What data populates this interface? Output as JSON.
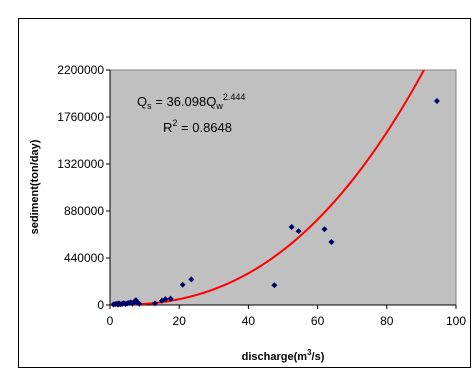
{
  "chart_data": {
    "type": "scatter",
    "title": "",
    "xlabel": "discharge(m3/s)",
    "xlabel_parts": {
      "main": "discharge(m",
      "sup": "3",
      "tail": "/s)"
    },
    "ylabel": "sediment(ton/day)",
    "xlim": [
      0,
      100
    ],
    "ylim": [
      0,
      2200000
    ],
    "x_ticks": [
      "0",
      "20",
      "40",
      "60",
      "80",
      "100"
    ],
    "y_ticks": [
      "0",
      "440000",
      "880000",
      "1320000",
      "1760000",
      "2200000"
    ],
    "grid": false,
    "plot_background": "#c0c0c0",
    "series": [
      {
        "marker_color": "#000066",
        "points": [
          [
            1,
            5000
          ],
          [
            1.5,
            8000
          ],
          [
            2,
            12000
          ],
          [
            2.3,
            3000
          ],
          [
            2.6,
            15000
          ],
          [
            3,
            6000
          ],
          [
            3.5,
            10000
          ],
          [
            4,
            18000
          ],
          [
            4.5,
            8000
          ],
          [
            5,
            15000
          ],
          [
            5.5,
            20000
          ],
          [
            6,
            25000
          ],
          [
            6.5,
            12000
          ],
          [
            7,
            30000
          ],
          [
            7.5,
            45000
          ],
          [
            8,
            20000
          ],
          [
            8.5,
            10000
          ],
          [
            13,
            15000
          ],
          [
            15,
            40000
          ],
          [
            16,
            55000
          ],
          [
            17.5,
            60000
          ],
          [
            21,
            190000
          ],
          [
            23.5,
            240000
          ],
          [
            47.5,
            185000
          ],
          [
            52.5,
            730000
          ],
          [
            54.5,
            690000
          ],
          [
            62,
            710000
          ],
          [
            64,
            590000
          ],
          [
            94.5,
            1910000
          ]
        ]
      }
    ],
    "fit": {
      "color": "#ff0000",
      "coefficient": 36.098,
      "exponent": 2.444,
      "x_range": [
        0,
        100
      ]
    },
    "annotations": {
      "equation": {
        "lhs": "Q",
        "lhs_sub": "s",
        "mid": " = 36.098Q",
        "mid_sub": "w",
        "sup": "2.444"
      },
      "r2": {
        "pre": "R",
        "sup": "2",
        "post": " = 0.8648"
      }
    }
  }
}
